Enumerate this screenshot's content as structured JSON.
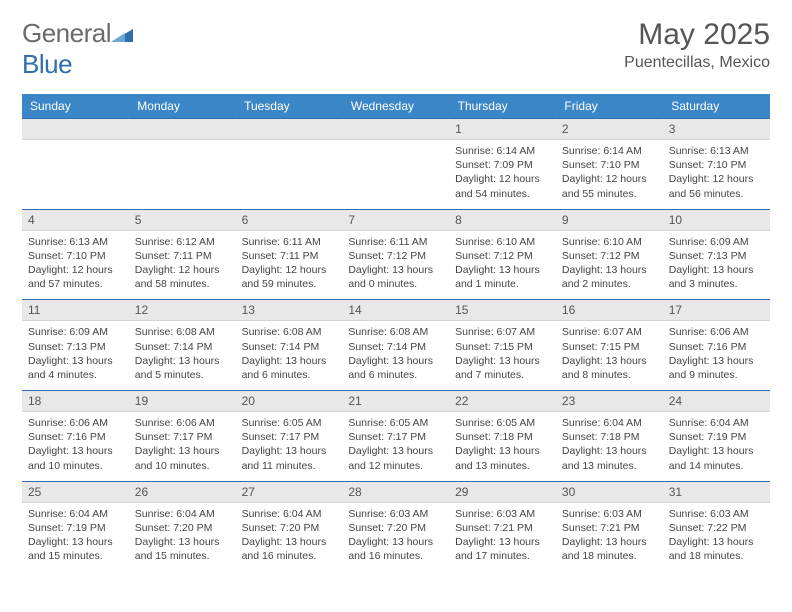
{
  "brand": {
    "part1": "General",
    "part2": "Blue"
  },
  "title": "May 2025",
  "location": "Puentecillas, Mexico",
  "colors": {
    "header_bg": "#3b86c6",
    "header_text": "#ffffff",
    "row_divider": "#2f6fae",
    "daynum_bg": "#e8e8e8",
    "body_text": "#444444",
    "title_text": "#555555",
    "logo_gray": "#6b6b6b",
    "logo_blue": "#2f6fae",
    "page_bg": "#ffffff"
  },
  "typography": {
    "title_pt": 30,
    "location_pt": 16,
    "dayhdr_pt": 12,
    "daynum_pt": 12,
    "body_pt": 10.5,
    "family": "Arial"
  },
  "day_headers": [
    "Sunday",
    "Monday",
    "Tuesday",
    "Wednesday",
    "Thursday",
    "Friday",
    "Saturday"
  ],
  "weeks": [
    [
      {
        "n": "",
        "sr": "",
        "ss": "",
        "dl": ""
      },
      {
        "n": "",
        "sr": "",
        "ss": "",
        "dl": ""
      },
      {
        "n": "",
        "sr": "",
        "ss": "",
        "dl": ""
      },
      {
        "n": "",
        "sr": "",
        "ss": "",
        "dl": ""
      },
      {
        "n": "1",
        "sr": "Sunrise: 6:14 AM",
        "ss": "Sunset: 7:09 PM",
        "dl": "Daylight: 12 hours and 54 minutes."
      },
      {
        "n": "2",
        "sr": "Sunrise: 6:14 AM",
        "ss": "Sunset: 7:10 PM",
        "dl": "Daylight: 12 hours and 55 minutes."
      },
      {
        "n": "3",
        "sr": "Sunrise: 6:13 AM",
        "ss": "Sunset: 7:10 PM",
        "dl": "Daylight: 12 hours and 56 minutes."
      }
    ],
    [
      {
        "n": "4",
        "sr": "Sunrise: 6:13 AM",
        "ss": "Sunset: 7:10 PM",
        "dl": "Daylight: 12 hours and 57 minutes."
      },
      {
        "n": "5",
        "sr": "Sunrise: 6:12 AM",
        "ss": "Sunset: 7:11 PM",
        "dl": "Daylight: 12 hours and 58 minutes."
      },
      {
        "n": "6",
        "sr": "Sunrise: 6:11 AM",
        "ss": "Sunset: 7:11 PM",
        "dl": "Daylight: 12 hours and 59 minutes."
      },
      {
        "n": "7",
        "sr": "Sunrise: 6:11 AM",
        "ss": "Sunset: 7:12 PM",
        "dl": "Daylight: 13 hours and 0 minutes."
      },
      {
        "n": "8",
        "sr": "Sunrise: 6:10 AM",
        "ss": "Sunset: 7:12 PM",
        "dl": "Daylight: 13 hours and 1 minute."
      },
      {
        "n": "9",
        "sr": "Sunrise: 6:10 AM",
        "ss": "Sunset: 7:12 PM",
        "dl": "Daylight: 13 hours and 2 minutes."
      },
      {
        "n": "10",
        "sr": "Sunrise: 6:09 AM",
        "ss": "Sunset: 7:13 PM",
        "dl": "Daylight: 13 hours and 3 minutes."
      }
    ],
    [
      {
        "n": "11",
        "sr": "Sunrise: 6:09 AM",
        "ss": "Sunset: 7:13 PM",
        "dl": "Daylight: 13 hours and 4 minutes."
      },
      {
        "n": "12",
        "sr": "Sunrise: 6:08 AM",
        "ss": "Sunset: 7:14 PM",
        "dl": "Daylight: 13 hours and 5 minutes."
      },
      {
        "n": "13",
        "sr": "Sunrise: 6:08 AM",
        "ss": "Sunset: 7:14 PM",
        "dl": "Daylight: 13 hours and 6 minutes."
      },
      {
        "n": "14",
        "sr": "Sunrise: 6:08 AM",
        "ss": "Sunset: 7:14 PM",
        "dl": "Daylight: 13 hours and 6 minutes."
      },
      {
        "n": "15",
        "sr": "Sunrise: 6:07 AM",
        "ss": "Sunset: 7:15 PM",
        "dl": "Daylight: 13 hours and 7 minutes."
      },
      {
        "n": "16",
        "sr": "Sunrise: 6:07 AM",
        "ss": "Sunset: 7:15 PM",
        "dl": "Daylight: 13 hours and 8 minutes."
      },
      {
        "n": "17",
        "sr": "Sunrise: 6:06 AM",
        "ss": "Sunset: 7:16 PM",
        "dl": "Daylight: 13 hours and 9 minutes."
      }
    ],
    [
      {
        "n": "18",
        "sr": "Sunrise: 6:06 AM",
        "ss": "Sunset: 7:16 PM",
        "dl": "Daylight: 13 hours and 10 minutes."
      },
      {
        "n": "19",
        "sr": "Sunrise: 6:06 AM",
        "ss": "Sunset: 7:17 PM",
        "dl": "Daylight: 13 hours and 10 minutes."
      },
      {
        "n": "20",
        "sr": "Sunrise: 6:05 AM",
        "ss": "Sunset: 7:17 PM",
        "dl": "Daylight: 13 hours and 11 minutes."
      },
      {
        "n": "21",
        "sr": "Sunrise: 6:05 AM",
        "ss": "Sunset: 7:17 PM",
        "dl": "Daylight: 13 hours and 12 minutes."
      },
      {
        "n": "22",
        "sr": "Sunrise: 6:05 AM",
        "ss": "Sunset: 7:18 PM",
        "dl": "Daylight: 13 hours and 13 minutes."
      },
      {
        "n": "23",
        "sr": "Sunrise: 6:04 AM",
        "ss": "Sunset: 7:18 PM",
        "dl": "Daylight: 13 hours and 13 minutes."
      },
      {
        "n": "24",
        "sr": "Sunrise: 6:04 AM",
        "ss": "Sunset: 7:19 PM",
        "dl": "Daylight: 13 hours and 14 minutes."
      }
    ],
    [
      {
        "n": "25",
        "sr": "Sunrise: 6:04 AM",
        "ss": "Sunset: 7:19 PM",
        "dl": "Daylight: 13 hours and 15 minutes."
      },
      {
        "n": "26",
        "sr": "Sunrise: 6:04 AM",
        "ss": "Sunset: 7:20 PM",
        "dl": "Daylight: 13 hours and 15 minutes."
      },
      {
        "n": "27",
        "sr": "Sunrise: 6:04 AM",
        "ss": "Sunset: 7:20 PM",
        "dl": "Daylight: 13 hours and 16 minutes."
      },
      {
        "n": "28",
        "sr": "Sunrise: 6:03 AM",
        "ss": "Sunset: 7:20 PM",
        "dl": "Daylight: 13 hours and 16 minutes."
      },
      {
        "n": "29",
        "sr": "Sunrise: 6:03 AM",
        "ss": "Sunset: 7:21 PM",
        "dl": "Daylight: 13 hours and 17 minutes."
      },
      {
        "n": "30",
        "sr": "Sunrise: 6:03 AM",
        "ss": "Sunset: 7:21 PM",
        "dl": "Daylight: 13 hours and 18 minutes."
      },
      {
        "n": "31",
        "sr": "Sunrise: 6:03 AM",
        "ss": "Sunset: 7:22 PM",
        "dl": "Daylight: 13 hours and 18 minutes."
      }
    ]
  ]
}
